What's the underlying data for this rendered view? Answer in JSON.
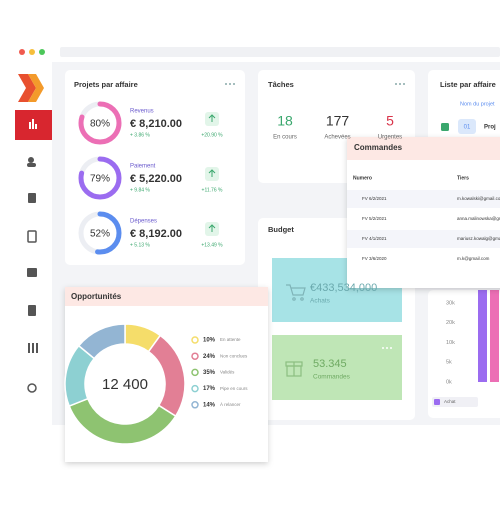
{
  "projets": {
    "title": "Projets par affaire",
    "rows": [
      {
        "progress": {
          "value": 80,
          "label": "80%"
        },
        "name": "Revenus",
        "amount": "€ 8,210.00",
        "change": "+ 3.86 %",
        "trend": "+20.90 %",
        "color": "#ec6fb5"
      },
      {
        "progress": {
          "value": 79,
          "label": "79%"
        },
        "name": "Paiement",
        "amount": "€ 5,220.00",
        "change": "+ 9.84 %",
        "trend": "+11.76 %",
        "color": "#9b6cf0"
      },
      {
        "progress": {
          "value": 52,
          "label": "52%"
        },
        "name": "Dépenses",
        "amount": "€ 8,192.00",
        "change": "+ 5.13 %",
        "trend": "+13.49 %",
        "color": "#5b8def"
      }
    ]
  },
  "taches": {
    "title": "Tâches",
    "stats": [
      {
        "value": "18",
        "label": "En cours",
        "color": "#3aa76d"
      },
      {
        "value": "177",
        "label": "Achevées",
        "color": "#333333"
      },
      {
        "value": "5",
        "label": "Urgentes",
        "color": "#d9344a"
      }
    ]
  },
  "liste": {
    "title": "Liste par affaire",
    "column": "Nom du projet",
    "row": {
      "badge": "01",
      "name": "Proj"
    }
  },
  "commandes": {
    "title": "Commandes",
    "columns": [
      "Numero",
      "Tiers"
    ],
    "rows": [
      [
        "FV 6/2/2021",
        "m.kowalski@gmail.com"
      ],
      [
        "FV 5/2/2021",
        "anna.malinowska@gmail.com"
      ],
      [
        "FV 4/1/2021",
        "mariusz.kowalg@gmail.com"
      ],
      [
        "FV 3/6/2020",
        "m.k@gmail.com"
      ]
    ]
  },
  "budget": {
    "title": "Budget",
    "tiles": [
      {
        "value": "€433,534,000",
        "label": "Achats"
      },
      {
        "value": "53.345",
        "label": "Commandes"
      }
    ]
  },
  "chart": {
    "yticks": [
      "30k",
      "20k",
      "10k",
      "5k",
      "0k"
    ],
    "legend": "Achat"
  },
  "opportunites": {
    "title": "Opportunités",
    "total": "12 400",
    "segments": [
      {
        "percent": {
          "value": 10,
          "label": "10%"
        },
        "name": "En attente",
        "color": "#f5dd6a"
      },
      {
        "percent": {
          "value": 24,
          "label": "24%"
        },
        "name": "Non conclues",
        "color": "#e27f95"
      },
      {
        "percent": {
          "value": 35,
          "label": "35%"
        },
        "name": "Validés",
        "color": "#8ec371"
      },
      {
        "percent": {
          "value": 17,
          "label": "17%"
        },
        "name": "Pipe en cours",
        "color": "#8dd0d2"
      },
      {
        "percent": {
          "value": 14,
          "label": "14%"
        },
        "name": "À relancer",
        "color": "#93b5d3"
      }
    ]
  }
}
